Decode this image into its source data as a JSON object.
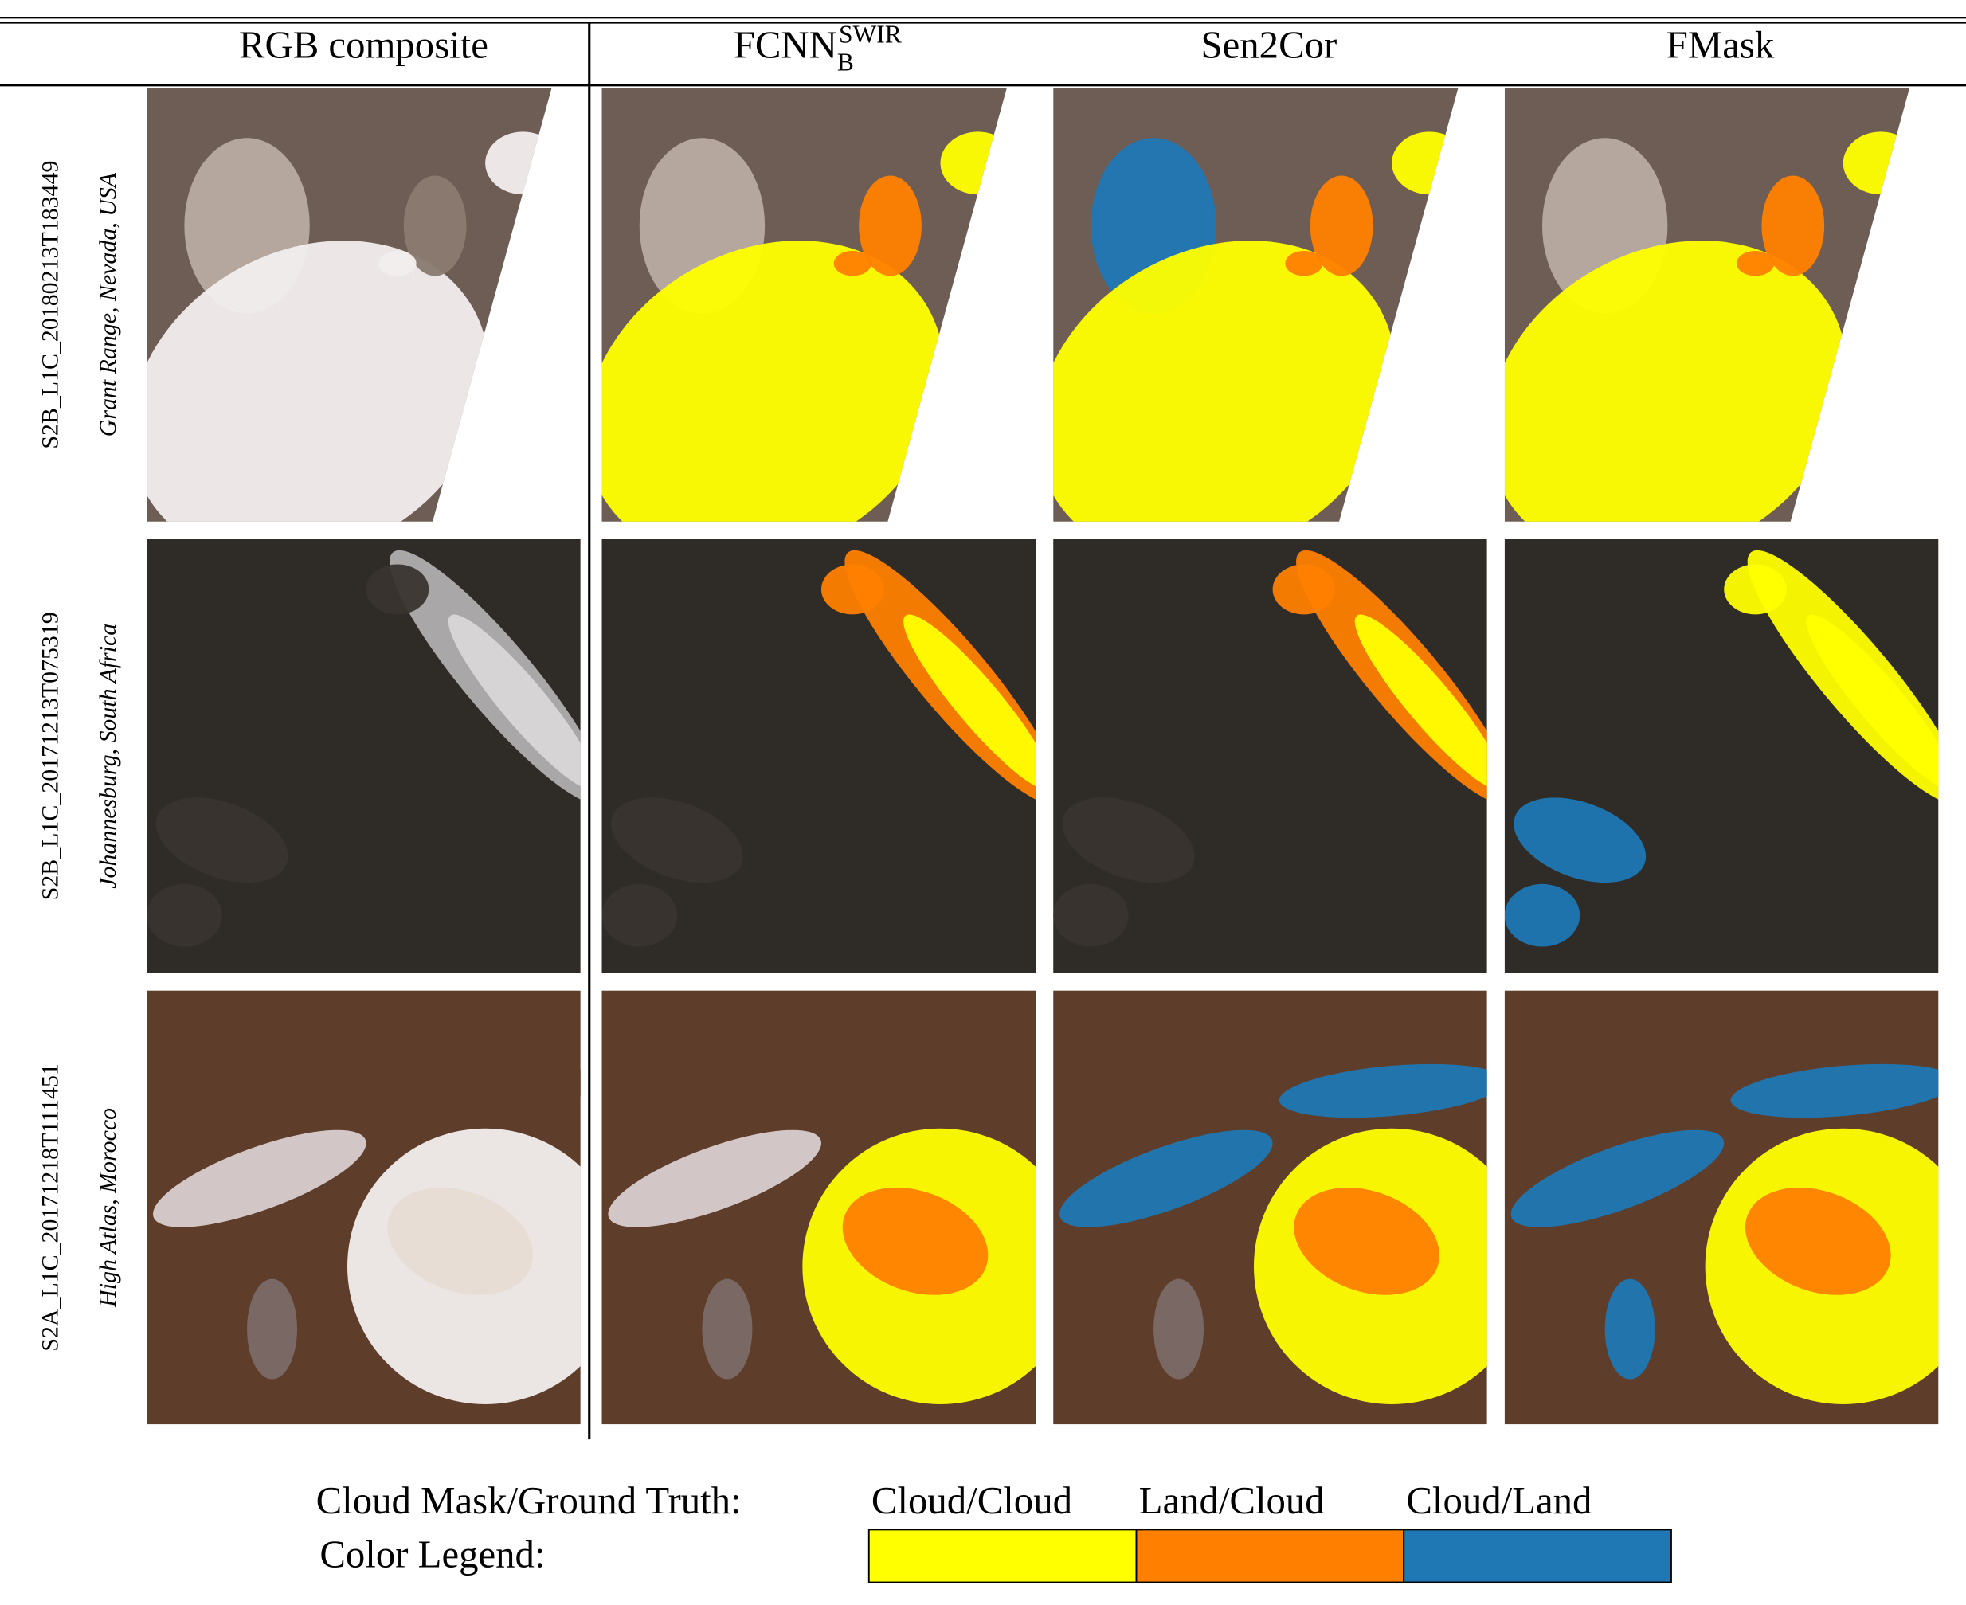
{
  "header": {
    "columns": [
      {
        "text": "RGB composite"
      },
      {
        "text": "FCNN",
        "sub": "B",
        "sup": "SWIR"
      },
      {
        "text": "Sen2Cor"
      },
      {
        "text": "FMask"
      }
    ]
  },
  "rows": [
    {
      "id": "S2B_L1C_20180213T183449",
      "location": "Grant Range, Nevada, USA"
    },
    {
      "id": "S2B_L1C_20171213T075319",
      "location": "Johannesburg, South Africa"
    },
    {
      "id": "S2A_L1C_20171218T111451",
      "location": "High Atlas, Morocco"
    }
  ],
  "legend": {
    "title": "Cloud Mask/Ground Truth:",
    "subtitle": "Color Legend:",
    "items": [
      {
        "label": "Cloud/Cloud",
        "color": "#ffff00"
      },
      {
        "label": "Land/Cloud",
        "color": "#ff8000"
      },
      {
        "label": "Cloud/Land",
        "color": "#1f77b4"
      }
    ]
  }
}
